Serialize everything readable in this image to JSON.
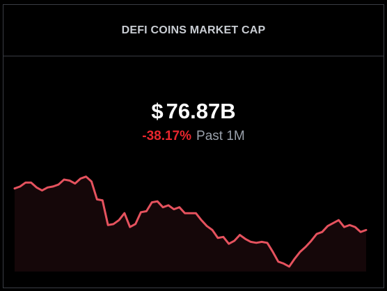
{
  "card": {
    "title": "DEFI COINS MARKET CAP",
    "currency_symbol": "$",
    "value": "76.87B",
    "change_percent": "-38.17%",
    "change_period": "Past 1M"
  },
  "colors": {
    "line": "#e5525e",
    "fill": "#150709",
    "negative": "#e8262d",
    "border": "#3a3d44"
  },
  "chart_data": {
    "type": "area",
    "title": "",
    "xlabel": "",
    "ylabel": "",
    "grid": false,
    "legend": "none",
    "ylim": [
      0,
      100
    ],
    "series": [
      {
        "values": [
          84,
          86,
          90,
          90,
          85,
          82,
          85,
          86,
          88,
          93,
          92,
          89,
          94,
          96,
          91,
          73,
          72,
          47,
          48,
          52,
          59,
          45,
          48,
          60,
          61,
          70,
          71,
          65,
          67,
          63,
          65,
          59,
          59,
          59,
          52,
          46,
          42,
          34,
          35,
          28,
          31,
          37,
          33,
          30,
          29,
          30,
          29,
          20,
          10,
          8,
          5,
          13,
          20,
          25,
          31,
          38,
          40,
          46,
          49,
          52,
          45,
          47,
          45,
          40,
          42
        ]
      }
    ]
  }
}
